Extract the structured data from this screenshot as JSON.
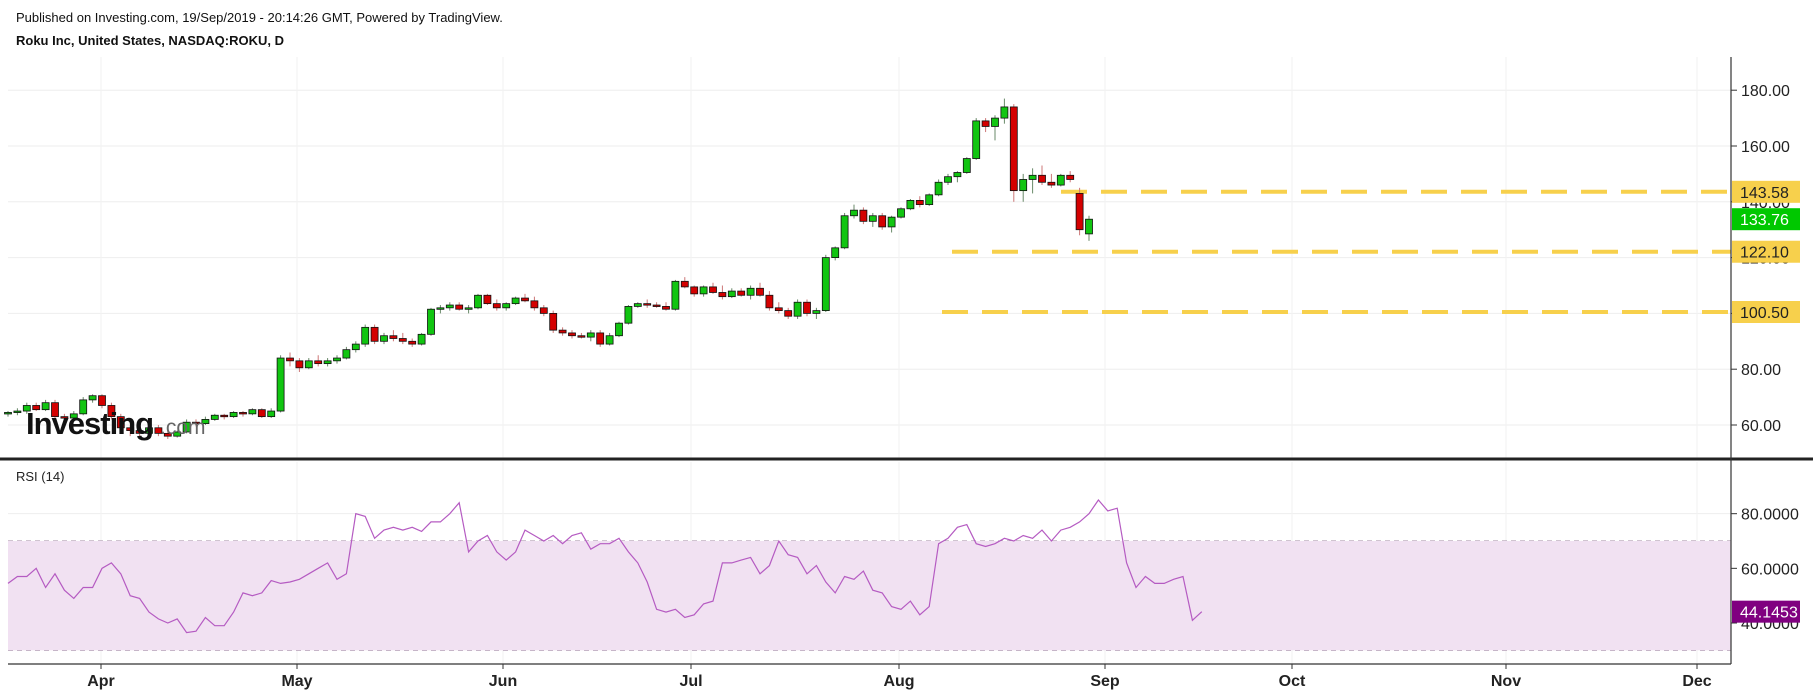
{
  "header": {
    "published": "Published on Investing.com, 19/Sep/2019 - 20:14:26 GMT, Powered by TradingView.",
    "symbol": "Roku Inc, United States, NASDAQ:ROKU, D"
  },
  "watermark": {
    "main": "Investing",
    "suffix": ".com"
  },
  "colors": {
    "up": "#11c511",
    "down": "#d40000",
    "level": "#f7d04c",
    "rsi_line": "#b55bc2",
    "rsi_band": "#f1e1f2",
    "last_price_badge": "#00c800",
    "rsi_badge": "#800080"
  },
  "chart_data": [
    {
      "type": "candlestick",
      "title": "Roku Inc, United States, NASDAQ:ROKU, D",
      "ylim": [
        50,
        190
      ],
      "y_ticks": [
        "60.00",
        "80.00",
        "100.00",
        "120.00",
        "140.00",
        "160.00",
        "180.00"
      ],
      "x_ticks": [
        "Apr",
        "May",
        "Jun",
        "Jul",
        "Aug",
        "Sep",
        "Oct",
        "Nov",
        "Dec"
      ],
      "levels": [
        {
          "value": 143.58,
          "label": "143.58"
        },
        {
          "value": 122.1,
          "label": "122.10"
        },
        {
          "value": 100.5,
          "label": "100.50"
        }
      ],
      "last_price": {
        "value": 133.76,
        "label": "133.76"
      },
      "series": [
        {
          "values": [
            [
              64,
              65,
              63,
              64.5
            ],
            [
              64.5,
              66,
              63.5,
              65
            ],
            [
              65,
              68,
              64,
              67
            ],
            [
              67,
              68,
              65,
              65.5
            ],
            [
              65.5,
              69,
              65,
              68
            ],
            [
              68,
              69,
              62,
              63
            ],
            [
              63,
              64,
              61,
              62.5
            ],
            [
              62.5,
              65,
              62,
              64
            ],
            [
              64,
              70,
              63.5,
              69
            ],
            [
              69,
              71,
              68,
              70.5
            ],
            [
              70.5,
              71,
              66,
              67
            ],
            [
              67,
              68,
              62,
              63
            ],
            [
              63,
              64,
              58,
              59
            ],
            [
              59,
              60,
              56,
              58
            ],
            [
              58,
              59,
              55,
              57
            ],
            [
              57,
              60,
              56,
              59
            ],
            [
              59,
              60,
              56,
              57
            ],
            [
              57,
              58,
              55,
              56
            ],
            [
              56,
              58,
              55.5,
              57.5
            ],
            [
              57.5,
              62,
              57,
              61
            ],
            [
              61,
              62,
              59.5,
              60.5
            ],
            [
              60.5,
              63,
              60,
              62
            ],
            [
              62,
              64,
              61.5,
              63.5
            ],
            [
              63.5,
              64,
              62,
              63
            ],
            [
              63,
              65,
              62.5,
              64.5
            ],
            [
              64.5,
              65,
              63,
              64
            ],
            [
              64,
              66,
              63.5,
              65.5
            ],
            [
              65.5,
              66,
              62.5,
              63
            ],
            [
              63,
              66,
              62.5,
              65
            ],
            [
              65,
              85,
              64.5,
              84
            ],
            [
              84,
              86,
              81,
              83
            ],
            [
              83,
              84,
              79,
              80.5
            ],
            [
              80.5,
              84,
              80,
              83
            ],
            [
              83,
              85,
              81,
              82
            ],
            [
              82,
              84,
              81,
              83
            ],
            [
              83,
              85,
              82,
              84
            ],
            [
              84,
              88,
              83.5,
              87
            ],
            [
              87,
              90,
              86,
              89
            ],
            [
              89,
              96,
              88,
              95
            ],
            [
              95,
              96,
              89,
              90
            ],
            [
              90,
              93,
              89,
              92
            ],
            [
              92,
              94,
              90,
              91
            ],
            [
              91,
              93,
              89,
              90
            ],
            [
              90,
              91,
              88,
              89
            ],
            [
              89,
              93,
              88.5,
              92.5
            ],
            [
              92.5,
              102,
              92,
              101.5
            ],
            [
              101.5,
              103,
              100,
              102
            ],
            [
              102,
              104,
              101,
              103
            ],
            [
              103,
              104,
              101,
              101.5
            ],
            [
              101.5,
              103,
              100,
              102
            ],
            [
              102,
              107,
              101.5,
              106.5
            ],
            [
              106.5,
              107,
              103,
              103.5
            ],
            [
              103.5,
              105,
              101,
              102
            ],
            [
              102,
              104,
              101,
              103.5
            ],
            [
              103.5,
              106,
              103,
              105.5
            ],
            [
              105.5,
              107,
              104,
              104.5
            ],
            [
              104.5,
              106,
              101,
              102
            ],
            [
              102,
              103,
              99,
              100
            ],
            [
              100,
              101,
              93,
              94
            ],
            [
              94,
              95,
              92,
              93
            ],
            [
              93,
              94,
              91,
              92
            ],
            [
              92,
              93,
              91,
              91.5
            ],
            [
              91.5,
              94,
              90,
              93
            ],
            [
              93,
              94,
              88,
              89
            ],
            [
              89,
              93,
              88.5,
              92
            ],
            [
              92,
              97,
              91.5,
              96.5
            ],
            [
              96.5,
              103,
              96,
              102.5
            ],
            [
              102.5,
              104,
              102,
              103.5
            ],
            [
              103.5,
              105,
              102,
              103
            ],
            [
              103,
              104,
              102,
              102.5
            ],
            [
              102.5,
              104,
              101,
              101.5
            ],
            [
              101.5,
              112,
              101,
              111.5
            ],
            [
              111.5,
              113,
              109,
              109.5
            ],
            [
              109.5,
              110,
              106,
              107
            ],
            [
              107,
              110,
              106,
              109.5
            ],
            [
              109.5,
              111,
              107,
              107.5
            ],
            [
              107.5,
              110,
              105,
              106
            ],
            [
              106,
              109,
              105.5,
              108
            ],
            [
              108,
              109,
              106,
              106.5
            ],
            [
              106.5,
              110,
              105,
              109
            ],
            [
              109,
              111,
              106,
              106.5
            ],
            [
              106.5,
              108,
              101,
              102
            ],
            [
              102,
              104,
              100,
              101
            ],
            [
              101,
              102,
              98,
              99
            ],
            [
              99,
              105,
              98,
              104
            ],
            [
              104,
              105,
              99,
              100
            ],
            [
              100,
              102,
              98,
              101
            ],
            [
              101,
              121,
              100.5,
              120
            ],
            [
              120,
              124,
              119,
              123.5
            ],
            [
              123.5,
              136,
              123,
              135
            ],
            [
              135,
              139,
              134,
              137
            ],
            [
              137,
              138,
              132,
              133
            ],
            [
              133,
              136,
              131,
              135
            ],
            [
              135,
              136,
              130,
              131
            ],
            [
              131,
              135,
              129,
              134.5
            ],
            [
              134.5,
              138,
              134,
              137.5
            ],
            [
              137.5,
              141,
              137,
              140.5
            ],
            [
              140.5,
              142,
              138,
              139
            ],
            [
              139,
              143,
              138.5,
              142.5
            ],
            [
              142.5,
              148,
              142,
              147
            ],
            [
              147,
              150,
              146,
              149
            ],
            [
              149,
              151,
              147,
              150.5
            ],
            [
              150.5,
              156,
              150,
              155.5
            ],
            [
              155.5,
              170,
              155,
              169
            ],
            [
              169,
              170,
              165,
              167
            ],
            [
              167,
              171,
              162,
              170
            ],
            [
              170,
              177,
              168,
              174
            ],
            [
              174,
              175,
              140,
              144
            ],
            [
              144,
              150,
              140,
              148
            ],
            [
              148,
              152,
              143,
              149.5
            ],
            [
              149.5,
              153,
              146,
              147
            ],
            [
              147,
              150,
              145,
              146
            ],
            [
              146,
              150,
              145.5,
              149.5
            ],
            [
              149.5,
              151,
              147,
              148
            ],
            [
              143,
              145,
              128,
              130
            ],
            [
              128.5,
              135,
              126,
              133.76
            ]
          ]
        }
      ]
    },
    {
      "type": "line",
      "title": "RSI (14)",
      "ylim": [
        25,
        90
      ],
      "y_ticks": [
        "40.0000",
        "60.0000",
        "80.0000"
      ],
      "band": [
        30,
        70
      ],
      "last": {
        "value": 44.1453,
        "label": "44.1453"
      },
      "series": [
        {
          "values": [
            54.5,
            57,
            57,
            60,
            53,
            58,
            52,
            49,
            53,
            53,
            60,
            62,
            58,
            50,
            49,
            44,
            41.5,
            40,
            41.5,
            36.5,
            37,
            42,
            39,
            39,
            44,
            51,
            50,
            51,
            55.5,
            54.5,
            55,
            56,
            58,
            60,
            62,
            56,
            58,
            80,
            79,
            71,
            74,
            75,
            74,
            75,
            73.5,
            77,
            77,
            80,
            84,
            66,
            70,
            72,
            66,
            63,
            66,
            74,
            72,
            70,
            72,
            69,
            72,
            73,
            67,
            69,
            69,
            71,
            66,
            62,
            55,
            45,
            44,
            45,
            42,
            43,
            47,
            48,
            62,
            62,
            63,
            64,
            58,
            61,
            70,
            65,
            64,
            58,
            61,
            55,
            51,
            57,
            56,
            59,
            52,
            51,
            46,
            45,
            48,
            43,
            46,
            69,
            71,
            75,
            76,
            69,
            68,
            69,
            71,
            70,
            72,
            71,
            74,
            70,
            74,
            75,
            77,
            80,
            85,
            81,
            82,
            62,
            53,
            57,
            54.5,
            54.5,
            56,
            57,
            41,
            44.1453
          ]
        }
      ]
    }
  ]
}
